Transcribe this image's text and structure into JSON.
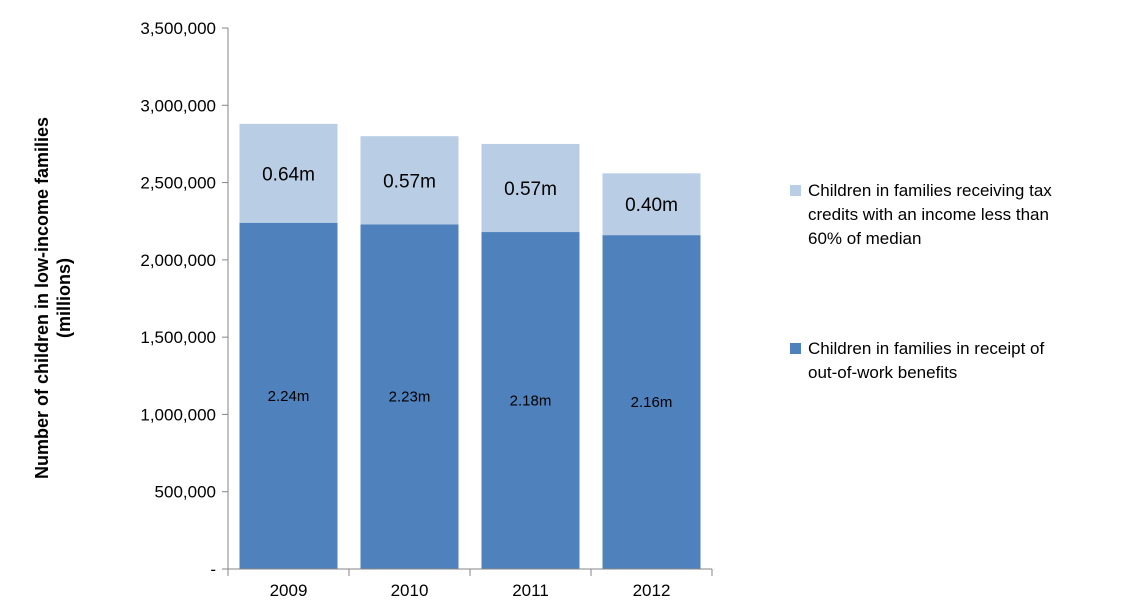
{
  "chart_data": {
    "type": "bar",
    "stacked": true,
    "title": "",
    "xlabel": "",
    "ylabel": "Number of children in low-income families (millions)",
    "ylabel_lines": [
      "Number of children in low-income families",
      "(millions)"
    ],
    "categories": [
      "2009",
      "2010",
      "2011",
      "2012"
    ],
    "ylim": [
      0,
      3500000
    ],
    "yticks": [
      0,
      500000,
      1000000,
      1500000,
      2000000,
      2500000,
      3000000,
      3500000
    ],
    "ytick_labels": [
      "-",
      "500,000",
      "1,000,000",
      "1,500,000",
      "2,000,000",
      "2,500,000",
      "3,000,000",
      "3,500,000"
    ],
    "grid": false,
    "legend_position": "right",
    "series": [
      {
        "name": "Children in families in receipt of out-of-work benefits",
        "legend_lines": [
          "Children in families in receipt of",
          "out-of-work benefits"
        ],
        "color": "#4F81BD",
        "values": [
          2240000,
          2230000,
          2180000,
          2160000
        ],
        "labels": [
          "2.24m",
          "2.23m",
          "2.18m",
          "2.16m"
        ]
      },
      {
        "name": "Children in families receiving tax credits with an income less than 60% of median",
        "legend_lines": [
          "Children in families receiving tax",
          "credits with an income less than",
          "60% of median"
        ],
        "color": "#B9CDE5",
        "values": [
          640000,
          570000,
          570000,
          400000
        ],
        "labels": [
          "0.64m",
          "0.57m",
          "0.57m",
          "0.40m"
        ]
      }
    ]
  }
}
